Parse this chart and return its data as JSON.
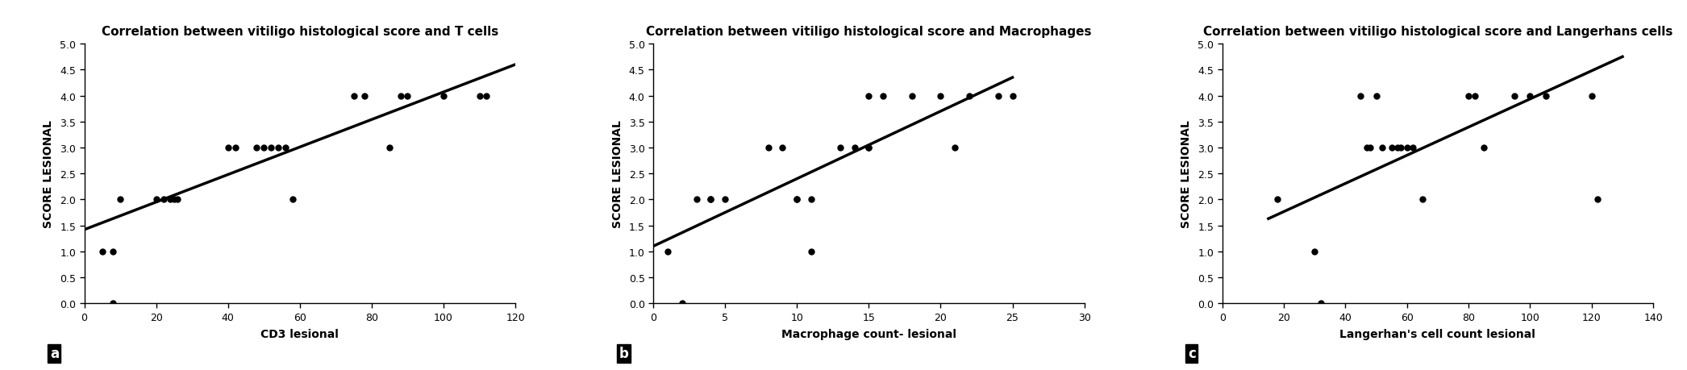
{
  "plot_a": {
    "title": "Correlation between vitiligo histological score and T cells",
    "xlabel": "CD3 lesional",
    "ylabel": "SCORE LESIONAL",
    "xlim": [
      0,
      120
    ],
    "ylim": [
      0,
      5
    ],
    "xticks": [
      0,
      20,
      40,
      60,
      80,
      100,
      120
    ],
    "yticks": [
      0,
      0.5,
      1,
      1.5,
      2,
      2.5,
      3,
      3.5,
      4,
      4.5,
      5
    ],
    "scatter_x": [
      5,
      8,
      8,
      10,
      20,
      22,
      24,
      25,
      26,
      40,
      42,
      48,
      50,
      52,
      54,
      56,
      58,
      75,
      78,
      85,
      88,
      90,
      100,
      110,
      112
    ],
    "scatter_y": [
      1,
      1,
      0,
      2,
      2,
      2,
      2,
      2,
      2,
      3,
      3,
      3,
      3,
      3,
      3,
      3,
      2,
      4,
      4,
      3,
      4,
      4,
      4,
      4,
      4
    ],
    "line_x": [
      0,
      120
    ],
    "line_y": [
      1.42,
      4.6
    ],
    "label": "a"
  },
  "plot_b": {
    "title": "Correlation between vitiligo histological score and Macrophages",
    "xlabel": "Macrophage count- lesional",
    "ylabel": "SCORE LESIONAL",
    "xlim": [
      0,
      30
    ],
    "ylim": [
      0,
      5
    ],
    "xticks": [
      0,
      5,
      10,
      15,
      20,
      25,
      30
    ],
    "yticks": [
      0,
      0.5,
      1,
      1.5,
      2,
      2.5,
      3,
      3.5,
      4,
      4.5,
      5
    ],
    "scatter_x": [
      1,
      2,
      3,
      4,
      4,
      5,
      8,
      9,
      10,
      10,
      11,
      11,
      13,
      14,
      15,
      15,
      15,
      16,
      18,
      20,
      21,
      22,
      24,
      25
    ],
    "scatter_y": [
      1,
      0,
      2,
      2,
      2,
      2,
      3,
      3,
      2,
      2,
      1,
      2,
      3,
      3,
      3,
      3,
      4,
      4,
      4,
      4,
      3,
      4,
      4,
      4
    ],
    "line_x": [
      0,
      25
    ],
    "line_y": [
      1.1,
      4.35
    ],
    "label": "b"
  },
  "plot_c": {
    "title": "Correlation between vitiligo histological score and Langerhans cells",
    "xlabel": "Langerhan's cell count lesional",
    "ylabel": "SCORE LESIONAL",
    "xlim": [
      0,
      140
    ],
    "ylim": [
      0,
      5
    ],
    "xticks": [
      0,
      20,
      40,
      60,
      80,
      100,
      120,
      140
    ],
    "yticks": [
      0,
      0.5,
      1,
      1.5,
      2,
      2.5,
      3,
      3.5,
      4,
      4.5,
      5
    ],
    "scatter_x": [
      18,
      30,
      32,
      45,
      47,
      48,
      50,
      52,
      55,
      57,
      58,
      60,
      62,
      65,
      80,
      82,
      85,
      95,
      100,
      105,
      120,
      122
    ],
    "scatter_y": [
      2,
      1,
      0,
      4,
      3,
      3,
      4,
      3,
      3,
      3,
      3,
      3,
      3,
      2,
      4,
      4,
      3,
      4,
      4,
      4,
      4,
      2
    ],
    "line_x": [
      15,
      130
    ],
    "line_y": [
      1.63,
      4.75
    ],
    "label": "c"
  },
  "background_color": "#ffffff",
  "scatter_color": "#000000",
  "line_color": "#000000",
  "title_fontsize": 11,
  "label_fontsize": 10,
  "tick_fontsize": 9,
  "marker_size": 5,
  "line_width": 2.5
}
